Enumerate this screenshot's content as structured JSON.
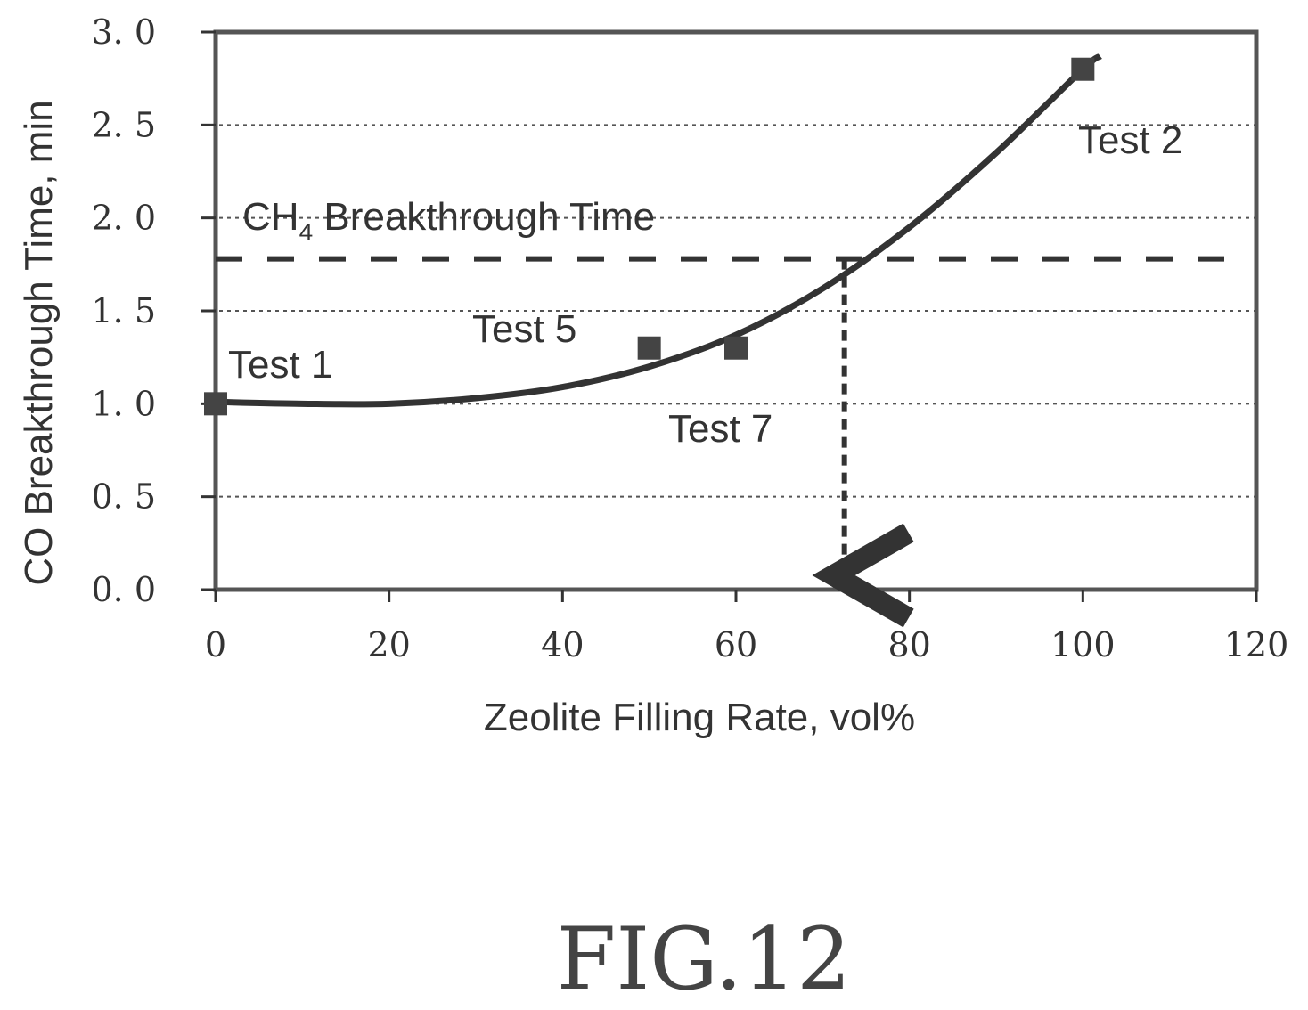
{
  "figure": {
    "caption": "FIG.12"
  },
  "chart_data": {
    "type": "scatter",
    "xlabel": "Zeolite Filling Rate, vol%",
    "ylabel": "CO Breakthrough Time, min",
    "xlim": [
      0,
      120
    ],
    "ylim": [
      0,
      3.0
    ],
    "x_ticks": [
      0,
      20,
      40,
      60,
      80,
      100,
      120
    ],
    "y_ticks": [
      0.0,
      0.5,
      1.0,
      1.5,
      2.0,
      2.5,
      3.0
    ],
    "y_tick_labels": [
      "0. 0",
      "0. 5",
      "1. 0",
      "1. 5",
      "2. 0",
      "2. 5",
      "3. 0"
    ],
    "x_tick_labels": [
      "0",
      "20",
      "40",
      "60",
      "80",
      "100",
      "120"
    ],
    "grid": "horizontal dotted",
    "series": [
      {
        "points": [
          {
            "label": "Test 1",
            "x": 0,
            "y": 1.0
          },
          {
            "label": "Test 5",
            "x": 50,
            "y": 1.3
          },
          {
            "label": "Test 7",
            "x": 60,
            "y": 1.3
          },
          {
            "label": "Test 2",
            "x": 100,
            "y": 2.8
          }
        ]
      }
    ],
    "trend_curve": {
      "x": [
        0,
        10,
        20,
        30,
        40,
        50,
        60,
        70,
        80,
        90,
        100,
        102
      ],
      "y": [
        1.01,
        1.0,
        1.0,
        1.03,
        1.09,
        1.2,
        1.37,
        1.62,
        1.95,
        2.35,
        2.8,
        2.87
      ]
    },
    "reference_line": {
      "label_main": "CH",
      "label_sub": "4",
      "label_rest": " Breakthrough Time",
      "y": 1.78
    },
    "intersection_x": 72.5,
    "colors": {
      "ink": "#333333",
      "grid": "#555555"
    }
  }
}
